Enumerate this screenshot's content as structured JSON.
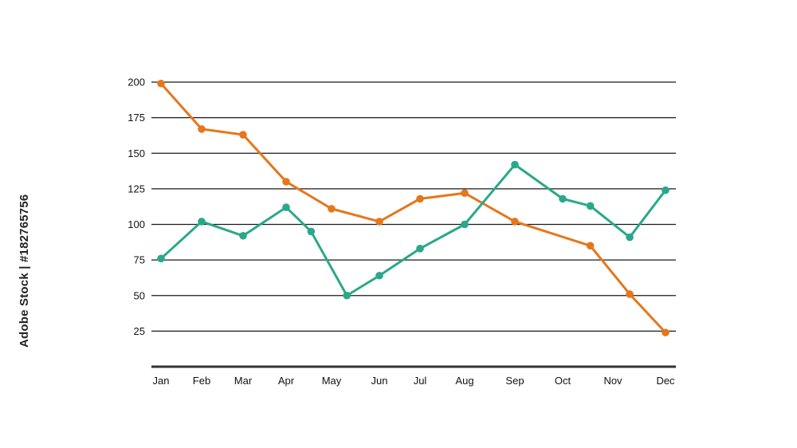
{
  "chart_data": {
    "type": "line",
    "categories": [
      "Jan",
      "Feb",
      "Mar",
      "Apr",
      "May",
      "Jun",
      "Jul",
      "Aug",
      "Sep",
      "Oct",
      "Nov",
      "Dec"
    ],
    "series": [
      {
        "color": "#e5771b",
        "points": [
          {
            "x": "Jan",
            "y": 199
          },
          {
            "x": "Feb",
            "y": 167
          },
          {
            "x": "Mar",
            "y": 163
          },
          {
            "x": "Apr",
            "y": 130
          },
          {
            "x": "May",
            "y": 111
          },
          {
            "x": "Jun",
            "y": 102
          },
          {
            "x": "Jul",
            "y": 118
          },
          {
            "x": "Aug",
            "y": 122
          },
          {
            "x": "Sep",
            "y": 102
          },
          {
            "x": "Nov",
            "y": 85
          },
          {
            "x": "Nov",
            "y": 51
          },
          {
            "x": "Dec",
            "y": 24
          }
        ]
      },
      {
        "color": "#2aa88a",
        "points": [
          {
            "x": "Jan",
            "y": 76
          },
          {
            "x": "Feb",
            "y": 102
          },
          {
            "x": "Mar",
            "y": 92
          },
          {
            "x": "Apr",
            "y": 112
          },
          {
            "x": "May",
            "y": 95
          },
          {
            "x": "May",
            "y": 50
          },
          {
            "x": "Jun",
            "y": 64
          },
          {
            "x": "Jul",
            "y": 83
          },
          {
            "x": "Aug",
            "y": 100
          },
          {
            "x": "Sep",
            "y": 142
          },
          {
            "x": "Oct",
            "y": 118
          },
          {
            "x": "Nov",
            "y": 113
          },
          {
            "x": "Nov",
            "y": 91
          },
          {
            "x": "Dec",
            "y": 124
          }
        ]
      }
    ],
    "yticks": [
      25,
      50,
      75,
      100,
      125,
      150,
      175,
      200
    ],
    "ylim": [
      0,
      200
    ],
    "grid": true,
    "title": "",
    "xlabel": "",
    "ylabel": ""
  },
  "watermark": "Adobe Stock | #182765756"
}
